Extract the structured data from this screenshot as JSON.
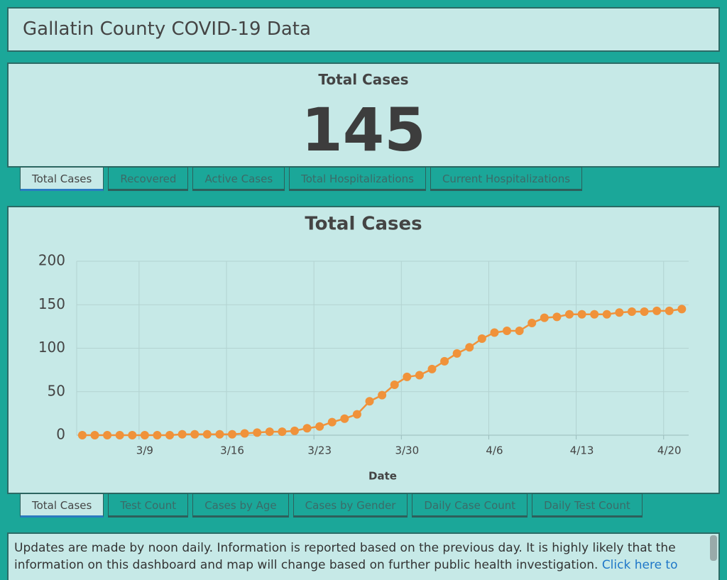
{
  "header": {
    "title": "Gallatin County COVID-19 Data"
  },
  "indicator": {
    "title": "Total Cases",
    "value": 145
  },
  "indicator_tabs": [
    "Total Cases",
    "Recovered",
    "Active Cases",
    "Total Hospitalizations",
    "Current Hospitalizations"
  ],
  "chart_data": {
    "type": "line",
    "title": "Total Cases",
    "x_label": "Date",
    "color": "#f0923a",
    "grid": true,
    "categories": [
      "3/4",
      "3/5",
      "3/6",
      "3/7",
      "3/8",
      "3/9",
      "3/10",
      "3/11",
      "3/12",
      "3/13",
      "3/14",
      "3/15",
      "3/16",
      "3/17",
      "3/18",
      "3/19",
      "3/20",
      "3/21",
      "3/22",
      "3/23",
      "3/24",
      "3/25",
      "3/26",
      "3/27",
      "3/28",
      "3/29",
      "3/30",
      "3/31",
      "4/1",
      "4/2",
      "4/3",
      "4/4",
      "4/5",
      "4/6",
      "4/7",
      "4/8",
      "4/9",
      "4/10",
      "4/11",
      "4/12",
      "4/13",
      "4/14",
      "4/15",
      "4/16",
      "4/17",
      "4/18",
      "4/19",
      "4/20",
      "4/21"
    ],
    "values": [
      0,
      0,
      0,
      0,
      0,
      0,
      0,
      0,
      1,
      1,
      1,
      1,
      1,
      2,
      3,
      4,
      4,
      5,
      8,
      10,
      15,
      19,
      24,
      39,
      46,
      58,
      67,
      69,
      76,
      85,
      94,
      101,
      111,
      118,
      120,
      120,
      129,
      135,
      136,
      139,
      139,
      139,
      139,
      141,
      142,
      142,
      143,
      143,
      145
    ],
    "xticks": [
      "3/9",
      "3/16",
      "3/23",
      "3/30",
      "4/6",
      "4/13",
      "4/20"
    ],
    "ylim": [
      0,
      200
    ],
    "yticks": [
      0,
      50,
      100,
      150,
      200
    ]
  },
  "chart_tabs": [
    "Total Cases",
    "Test Count",
    "Cases by Age",
    "Cases by Gender",
    "Daily Case Count",
    "Daily Test Count"
  ],
  "footer": {
    "text": "Updates are made by noon daily. Information is reported based on the previous day. It is highly likely that the information on this dashboard and map will change based on further public health investigation. ",
    "link": "Click here to"
  }
}
